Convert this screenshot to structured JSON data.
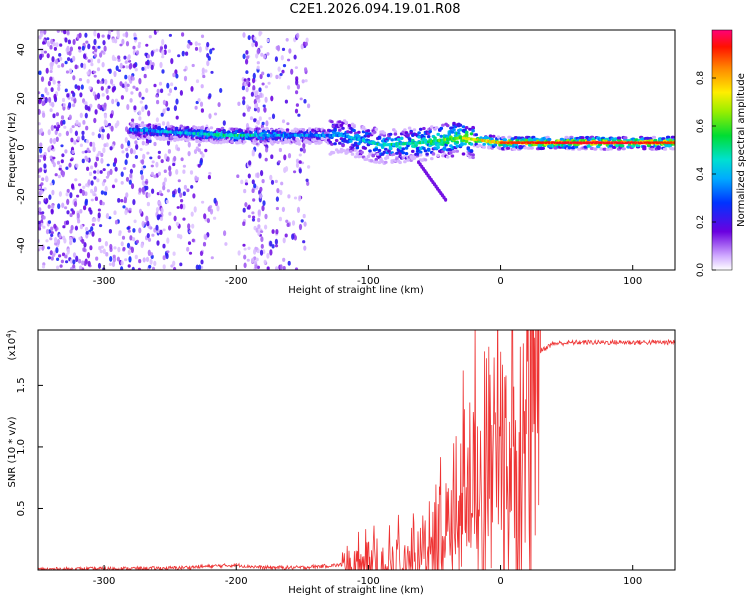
{
  "title": "C2E1.2026.094.19.01.R08",
  "chart_data": [
    {
      "type": "heatmap",
      "name": "spectrogram",
      "xlabel": "Height of straight line (km)",
      "ylabel": "Frequency (Hz)",
      "xlim": [
        -350,
        132
      ],
      "ylim": [
        -50,
        48
      ],
      "xticks": [
        -300,
        -200,
        -100,
        0,
        100
      ],
      "yticks": [
        -40,
        -20,
        0,
        20,
        40
      ],
      "colorbar": {
        "label": "Normalized spectral amplitude",
        "range": [
          0,
          1
        ],
        "ticks": [
          "0.0",
          "0.2",
          "0.4",
          "0.6",
          "0.8"
        ],
        "tick_values": [
          0.0,
          0.2,
          0.4,
          0.6,
          0.8
        ]
      },
      "ridge": [
        {
          "x": -270,
          "freq": 7,
          "amp": 0.45
        },
        {
          "x": -240,
          "freq": 6,
          "amp": 0.5
        },
        {
          "x": -205,
          "freq": 5,
          "amp": 0.6
        },
        {
          "x": -160,
          "freq": 5,
          "amp": 0.45
        },
        {
          "x": -120,
          "freq": 5,
          "amp": 0.45
        },
        {
          "x": -90,
          "freq": 1,
          "amp": 0.55
        },
        {
          "x": -60,
          "freq": 2,
          "amp": 0.6
        },
        {
          "x": -30,
          "freq": 4,
          "amp": 0.75
        },
        {
          "x": 0,
          "freq": 2,
          "amp": 0.9
        },
        {
          "x": 50,
          "freq": 2,
          "amp": 0.95
        },
        {
          "x": 100,
          "freq": 2,
          "amp": 0.95
        },
        {
          "x": 132,
          "freq": 2,
          "amp": 0.9
        }
      ]
    },
    {
      "type": "line",
      "name": "snr",
      "xlabel": "Height of straight line (km)",
      "ylabel": "SNR (10 * v/v)",
      "multiplier_label": "(x10",
      "multiplier_exponent": "4",
      "multiplier_close": ")",
      "xlim": [
        -350,
        132
      ],
      "ylim": [
        0,
        1.95
      ],
      "xticks": [
        -300,
        -200,
        -100,
        0,
        100
      ],
      "yticks": [
        0.5,
        1.0,
        1.5
      ],
      "ytick_labels": [
        "0.5",
        "1.0",
        "1.5"
      ],
      "color": "#ee3333",
      "series": [
        {
          "name": "SNR",
          "x": [
            -350,
            -300,
            -250,
            -200,
            -180,
            -150,
            -110,
            -90,
            -70,
            -50,
            -40,
            -30,
            -20,
            -10,
            0,
            10,
            20,
            30,
            40,
            60,
            80,
            100,
            132
          ],
          "y": [
            0.005,
            0.01,
            0.015,
            0.04,
            0.02,
            0.02,
            0.05,
            0.1,
            0.15,
            0.3,
            0.45,
            0.7,
            0.95,
            1.15,
            1.25,
            1.45,
            1.65,
            1.78,
            1.84,
            1.85,
            1.85,
            1.85,
            1.85
          ]
        }
      ]
    }
  ]
}
